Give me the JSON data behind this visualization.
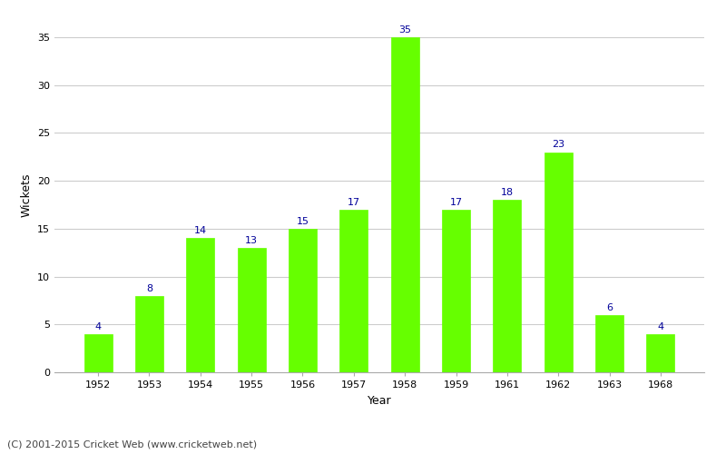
{
  "years": [
    "1952",
    "1953",
    "1954",
    "1955",
    "1956",
    "1957",
    "1958",
    "1959",
    "1961",
    "1962",
    "1963",
    "1968"
  ],
  "wickets": [
    4,
    8,
    14,
    13,
    15,
    17,
    35,
    17,
    18,
    23,
    6,
    4
  ],
  "bar_color": "#66ff00",
  "bar_edge_color": "#66ff00",
  "title": "",
  "xlabel": "Year",
  "ylabel": "Wickets",
  "ylim": [
    0,
    37
  ],
  "yticks": [
    0,
    5,
    10,
    15,
    20,
    25,
    30,
    35
  ],
  "label_color": "#000099",
  "label_fontsize": 8,
  "axis_label_fontsize": 9,
  "tick_fontsize": 8,
  "background_color": "#ffffff",
  "grid_color": "#cccccc",
  "copyright_text": "(C) 2001-2015 Cricket Web (www.cricketweb.net)",
  "copyright_fontsize": 8,
  "copyright_color": "#444444"
}
